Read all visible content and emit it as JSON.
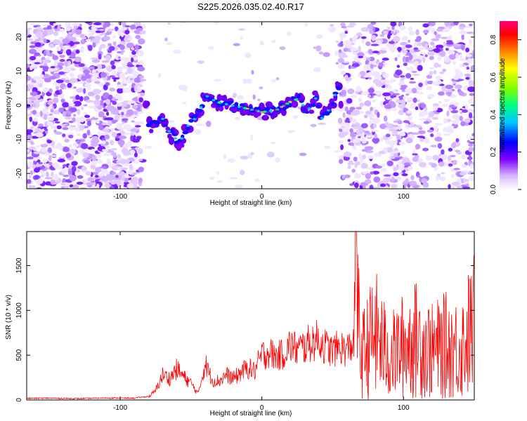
{
  "title": "S225.2026.035.02.40.R17",
  "chart_data": [
    {
      "type": "heatmap",
      "id": "spectrogram",
      "xlabel": "Height of straight line (km)",
      "ylabel": "Frequency (Hz)",
      "xlim": [
        -166,
        150
      ],
      "ylim": [
        -24.5,
        24.5
      ],
      "xticks": [
        -100,
        0,
        100
      ],
      "yticks": [
        -20,
        -10,
        0,
        10,
        20
      ],
      "colorbar": {
        "label": "Normalized spectral amplitude",
        "range": [
          0,
          0.9
        ],
        "ticks": [
          0.0,
          0.2,
          0.4,
          0.6,
          0.8
        ],
        "tick_labels": [
          "0.0",
          "0.2",
          "0.4",
          "0.6",
          "0.8"
        ],
        "colors": [
          "#ffffff",
          "#d9b8ff",
          "#8000ff",
          "#0000ff",
          "#00c8ff",
          "#00ff80",
          "#80ff00",
          "#ffff00",
          "#ff8000",
          "#ff0000",
          "#ff0080"
        ]
      },
      "ridge": [
        {
          "x": -80,
          "f": -6
        },
        {
          "x": -70,
          "f": -4
        },
        {
          "x": -65,
          "f": -8
        },
        {
          "x": -58,
          "f": -11
        },
        {
          "x": -52,
          "f": -6
        },
        {
          "x": -45,
          "f": -3
        },
        {
          "x": -40,
          "f": 3
        },
        {
          "x": -32,
          "f": 1
        },
        {
          "x": -22,
          "f": 0
        },
        {
          "x": -10,
          "f": -1
        },
        {
          "x": 0,
          "f": -2
        },
        {
          "x": 10,
          "f": -1.5
        },
        {
          "x": 20,
          "f": 1
        },
        {
          "x": 26,
          "f": 2
        },
        {
          "x": 32,
          "f": -2
        },
        {
          "x": 38,
          "f": 2
        },
        {
          "x": 42,
          "f": -4
        },
        {
          "x": 48,
          "f": -1
        },
        {
          "x": 55,
          "f": 7
        }
      ]
    },
    {
      "type": "line",
      "id": "snr",
      "xlabel": "Height of straight line (km)",
      "ylabel": "SNR (10 * v/v)",
      "xlim": [
        -166,
        150
      ],
      "ylim": [
        0,
        1880
      ],
      "xticks": [
        -100,
        0,
        100
      ],
      "yticks": [
        0,
        500,
        1000,
        1500
      ],
      "series_color": "#ff0000",
      "series": [
        {
          "name": "SNR",
          "x": [
            -166,
            -150,
            -130,
            -110,
            -90,
            -80,
            -75,
            -70,
            -65,
            -60,
            -55,
            -50,
            -45,
            -40,
            -35,
            -30,
            -25,
            -20,
            -15,
            -10,
            -5,
            0,
            5,
            10,
            15,
            20,
            25,
            30,
            35,
            40,
            45,
            50,
            55,
            60,
            65,
            66,
            70,
            80,
            90,
            100,
            110,
            120,
            130,
            140,
            150
          ],
          "y": [
            18,
            20,
            15,
            22,
            20,
            40,
            120,
            330,
            280,
            410,
            300,
            220,
            80,
            480,
            260,
            250,
            330,
            280,
            360,
            420,
            380,
            590,
            630,
            570,
            600,
            720,
            660,
            700,
            760,
            790,
            700,
            640,
            700,
            650,
            760,
            1880,
            700,
            1100,
            700,
            900,
            1000,
            800,
            900,
            850,
            1250
          ]
        }
      ]
    }
  ]
}
